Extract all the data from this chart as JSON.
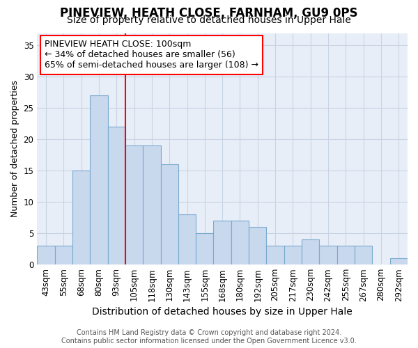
{
  "title": "PINEVIEW, HEATH CLOSE, FARNHAM, GU9 0PS",
  "subtitle": "Size of property relative to detached houses in Upper Hale",
  "xlabel": "Distribution of detached houses by size in Upper Hale",
  "ylabel": "Number of detached properties",
  "categories": [
    "43sqm",
    "55sqm",
    "68sqm",
    "80sqm",
    "93sqm",
    "105sqm",
    "118sqm",
    "130sqm",
    "143sqm",
    "155sqm",
    "168sqm",
    "180sqm",
    "192sqm",
    "205sqm",
    "217sqm",
    "230sqm",
    "242sqm",
    "255sqm",
    "267sqm",
    "280sqm",
    "292sqm"
  ],
  "values": [
    3,
    3,
    15,
    27,
    22,
    19,
    19,
    16,
    8,
    5,
    7,
    7,
    6,
    3,
    3,
    4,
    3,
    3,
    3,
    0,
    1
  ],
  "bar_color": "#c8d8ed",
  "bar_edge_color": "#7aaad0",
  "grid_color": "#c8d4e4",
  "background_color": "#e8eef8",
  "annotation_text": "PINEVIEW HEATH CLOSE: 100sqm\n← 34% of detached houses are smaller (56)\n65% of semi-detached houses are larger (108) →",
  "vline_index": 5,
  "ylim": [
    0,
    37
  ],
  "yticks": [
    0,
    5,
    10,
    15,
    20,
    25,
    30,
    35
  ],
  "footer": "Contains HM Land Registry data © Crown copyright and database right 2024.\nContains public sector information licensed under the Open Government Licence v3.0.",
  "title_fontsize": 12,
  "subtitle_fontsize": 10,
  "xlabel_fontsize": 10,
  "ylabel_fontsize": 9,
  "tick_fontsize": 8.5,
  "annotation_fontsize": 9,
  "footer_fontsize": 7
}
